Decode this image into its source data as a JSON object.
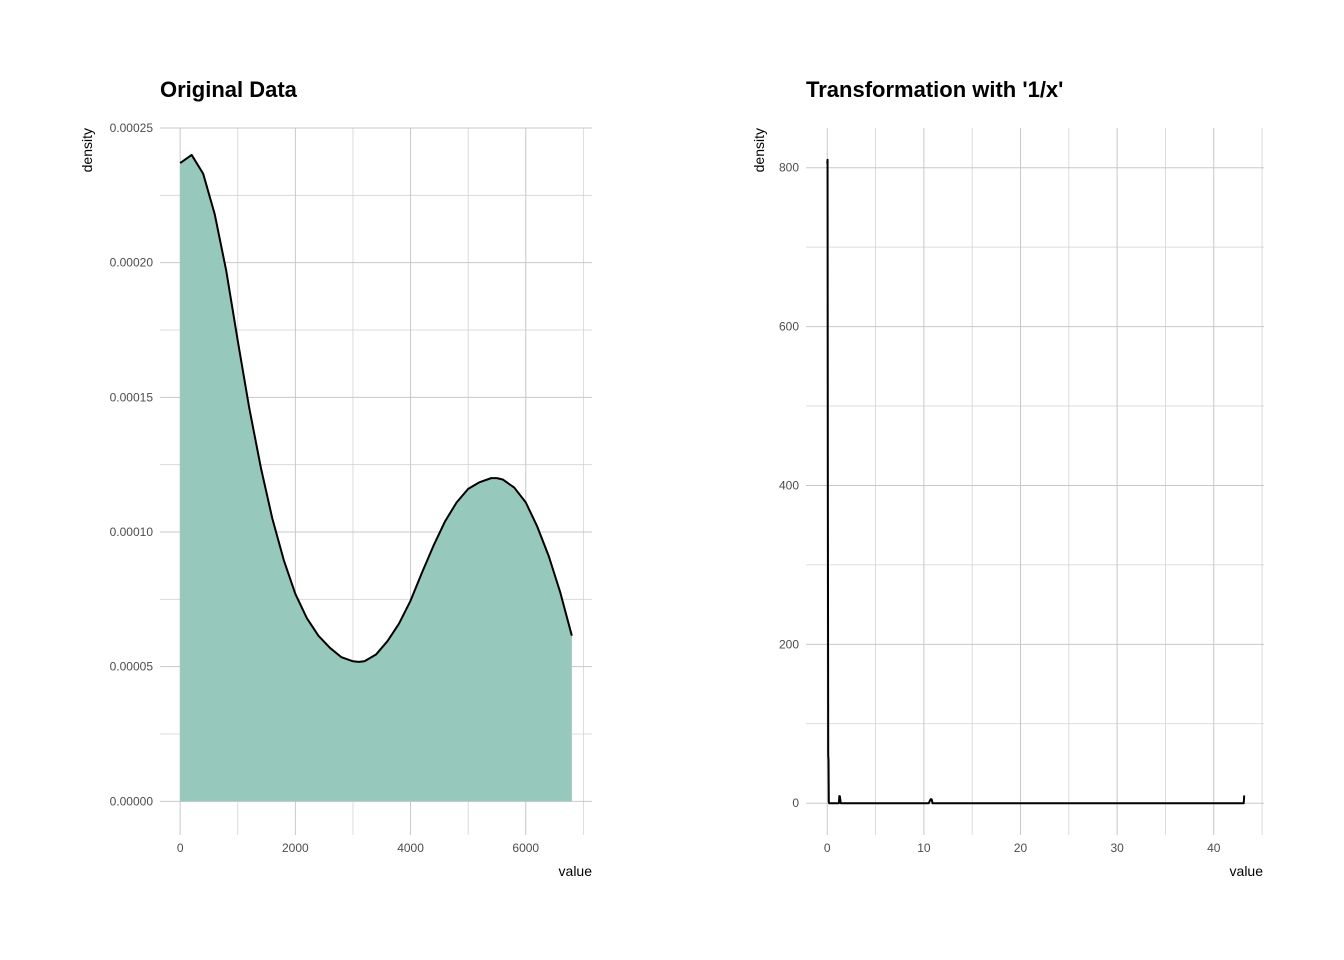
{
  "chart_data": [
    {
      "type": "area",
      "title": "Original Data",
      "xlabel": "value",
      "ylabel": "density",
      "xlim": [
        -350,
        7150
      ],
      "ylim": [
        -1.25e-05,
        0.00025
      ],
      "x_ticks": [
        0,
        2000,
        4000,
        6000
      ],
      "x_tick_labels": [
        "0",
        "2000",
        "4000",
        "6000"
      ],
      "y_ticks": [
        0,
        5e-05,
        0.0001,
        0.00015,
        0.0002,
        0.00025
      ],
      "y_tick_labels": [
        "0.00000",
        "0.00005",
        "0.00010",
        "0.00015",
        "0.00020",
        "0.00025"
      ],
      "grid": true,
      "fill_color": "#96c8bc",
      "line_color": "#000000",
      "series": [
        {
          "x": [
            0,
            200,
            400,
            600,
            800,
            1000,
            1200,
            1400,
            1600,
            1800,
            2000,
            2200,
            2400,
            2600,
            2800,
            3000,
            3100,
            3200,
            3400,
            3600,
            3800,
            4000,
            4200,
            4400,
            4600,
            4800,
            5000,
            5200,
            5400,
            5500,
            5600,
            5800,
            6000,
            6200,
            6400,
            6600,
            6800
          ],
          "y": [
            0.000237,
            0.00024,
            0.000233,
            0.000218,
            0.000197,
            0.000171,
            0.000146,
            0.000124,
            0.000105,
            8.95e-05,
            7.7e-05,
            6.8e-05,
            6.15e-05,
            5.7e-05,
            5.35e-05,
            5.2e-05,
            5.18e-05,
            5.2e-05,
            5.45e-05,
            5.95e-05,
            6.6e-05,
            7.45e-05,
            8.5e-05,
            9.5e-05,
            0.000104,
            0.000111,
            0.000116,
            0.0001185,
            0.00012,
            0.00012,
            0.0001195,
            0.0001165,
            0.000111,
            0.000102,
            9.1e-05,
            7.75e-05,
            6.15e-05
          ]
        }
      ]
    },
    {
      "type": "line",
      "title": "Transformation with '1/x'",
      "xlabel": "value",
      "ylabel": "density",
      "xlim": [
        -2.2,
        45.2
      ],
      "ylim": [
        -40,
        850
      ],
      "x_ticks": [
        0,
        10,
        20,
        30,
        40
      ],
      "x_tick_labels": [
        "0",
        "10",
        "20",
        "30",
        "40"
      ],
      "y_ticks": [
        0,
        200,
        400,
        600,
        800
      ],
      "y_tick_labels": [
        "0",
        "200",
        "400",
        "600",
        "800"
      ],
      "grid": true,
      "line_color": "#000000",
      "series": [
        {
          "x": [
            0.0,
            0.03,
            0.06,
            0.1,
            0.13,
            0.16,
            0.2,
            0.25,
            0.4,
            1.1,
            1.2,
            1.25,
            1.3,
            1.4,
            10.5,
            10.7,
            10.8,
            10.9,
            43.0,
            43.1,
            43.15,
            43.2
          ],
          "y": [
            805,
            810,
            400,
            60,
            55,
            2,
            0,
            0,
            0,
            0,
            0,
            9,
            9,
            0,
            0,
            5,
            5,
            0,
            0,
            0,
            9,
            9
          ]
        }
      ]
    }
  ]
}
